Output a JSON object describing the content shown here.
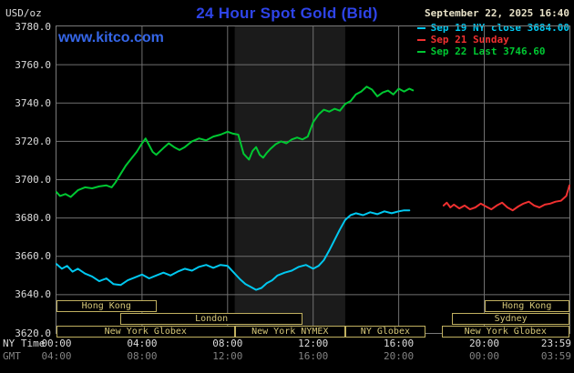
{
  "header": {
    "units": "USD/oz",
    "title": "24 Hour Spot Gold (Bid)",
    "datetime": "September 22, 2025 16:40",
    "watermark": "www.kitco.com"
  },
  "legend": {
    "items": [
      {
        "label": "Sep 19 NY close 3684.00",
        "color": "#00c8f0"
      },
      {
        "label": "Sep 21 Sunday",
        "color": "#f03030"
      },
      {
        "label": "Sep 22 Last 3746.60",
        "color": "#00c832"
      }
    ]
  },
  "colors": {
    "background": "#000000",
    "title": "#2e44e8",
    "watermark": "#3566e8",
    "grid": "#707070",
    "plot_border": "#7a7a7a",
    "axis_text": "#dcdcdc",
    "gmt_text": "#828282",
    "date_text": "#e8e2c8",
    "session_border": "#c0b060",
    "session_text": "#d4c678",
    "band": "#1b1b1b"
  },
  "chart_data": {
    "type": "line",
    "title": "24 Hour Spot Gold (Bid)",
    "ylabel": "USD/oz",
    "y_axis": {
      "min": 3620,
      "max": 3780,
      "tick_step": 20,
      "tick_labels": [
        "3780.0",
        "3760.0",
        "3740.0",
        "3720.0",
        "3700.0",
        "3680.0",
        "3660.0",
        "3640.0",
        "3620.0"
      ]
    },
    "x_axis": {
      "total_minutes": 1439,
      "tick_minutes": [
        0,
        240,
        480,
        720,
        960,
        1200,
        1439
      ],
      "rows": [
        {
          "label": "NY Time",
          "tick_labels": [
            "00:00",
            "04:00",
            "08:00",
            "12:00",
            "16:00",
            "20:00",
            "23:59"
          ]
        },
        {
          "label": "GMT",
          "tick_labels": [
            "04:00",
            "08:00",
            "12:00",
            "16:00",
            "20:00",
            "00:00",
            "03:59"
          ]
        }
      ]
    },
    "shaded_band": {
      "name": "nymex-session-band",
      "start_minute": 500,
      "end_minute": 810
    },
    "series": [
      {
        "name": "Sep 19 NY close",
        "color": "#00c8f0",
        "close_value": 3684.0,
        "points": [
          [
            0,
            3656
          ],
          [
            15,
            3653.5
          ],
          [
            30,
            3655
          ],
          [
            45,
            3652
          ],
          [
            60,
            3653.5
          ],
          [
            80,
            3651
          ],
          [
            100,
            3649.5
          ],
          [
            120,
            3647
          ],
          [
            140,
            3648.5
          ],
          [
            160,
            3645.5
          ],
          [
            180,
            3645
          ],
          [
            200,
            3647.5
          ],
          [
            220,
            3649
          ],
          [
            240,
            3650.5
          ],
          [
            260,
            3648.5
          ],
          [
            280,
            3650
          ],
          [
            300,
            3651.5
          ],
          [
            320,
            3650
          ],
          [
            340,
            3652
          ],
          [
            360,
            3653.5
          ],
          [
            380,
            3652.5
          ],
          [
            400,
            3654.5
          ],
          [
            420,
            3655.5
          ],
          [
            440,
            3654
          ],
          [
            460,
            3655.5
          ],
          [
            480,
            3655
          ],
          [
            500,
            3651
          ],
          [
            515,
            3648
          ],
          [
            530,
            3645.5
          ],
          [
            545,
            3644
          ],
          [
            560,
            3642.5
          ],
          [
            575,
            3643.5
          ],
          [
            590,
            3646
          ],
          [
            605,
            3647.5
          ],
          [
            620,
            3650
          ],
          [
            640,
            3651.5
          ],
          [
            660,
            3652.5
          ],
          [
            680,
            3654.5
          ],
          [
            700,
            3655.5
          ],
          [
            720,
            3653.5
          ],
          [
            735,
            3655
          ],
          [
            750,
            3658
          ],
          [
            765,
            3663
          ],
          [
            780,
            3668.5
          ],
          [
            795,
            3674
          ],
          [
            810,
            3679
          ],
          [
            825,
            3681.5
          ],
          [
            840,
            3682.5
          ],
          [
            860,
            3681.5
          ],
          [
            880,
            3683
          ],
          [
            900,
            3682
          ],
          [
            920,
            3683.5
          ],
          [
            940,
            3682.5
          ],
          [
            960,
            3683.5
          ],
          [
            975,
            3684
          ],
          [
            990,
            3684
          ]
        ]
      },
      {
        "name": "Sep 21 Sunday",
        "color": "#f03030",
        "points": [
          [
            1086,
            3686.5
          ],
          [
            1095,
            3688
          ],
          [
            1105,
            3685.5
          ],
          [
            1115,
            3687
          ],
          [
            1130,
            3685
          ],
          [
            1145,
            3686.5
          ],
          [
            1160,
            3684.5
          ],
          [
            1175,
            3685.5
          ],
          [
            1190,
            3687.5
          ],
          [
            1205,
            3686
          ],
          [
            1220,
            3684.5
          ],
          [
            1235,
            3686.5
          ],
          [
            1250,
            3688
          ],
          [
            1265,
            3685.5
          ],
          [
            1280,
            3684
          ],
          [
            1295,
            3686
          ],
          [
            1310,
            3687.5
          ],
          [
            1325,
            3688.5
          ],
          [
            1340,
            3686.5
          ],
          [
            1355,
            3685.5
          ],
          [
            1370,
            3687
          ],
          [
            1385,
            3687.5
          ],
          [
            1400,
            3688.5
          ],
          [
            1415,
            3689
          ],
          [
            1430,
            3691.5
          ],
          [
            1436,
            3695
          ],
          [
            1439,
            3697
          ]
        ]
      },
      {
        "name": "Sep 22",
        "color": "#00c832",
        "last_value": 3746.6,
        "points": [
          [
            0,
            3693.5
          ],
          [
            10,
            3691.5
          ],
          [
            25,
            3692.5
          ],
          [
            40,
            3691
          ],
          [
            60,
            3694.5
          ],
          [
            80,
            3696
          ],
          [
            100,
            3695.5
          ],
          [
            120,
            3696.5
          ],
          [
            140,
            3697
          ],
          [
            155,
            3696
          ],
          [
            165,
            3698.5
          ],
          [
            180,
            3703
          ],
          [
            195,
            3707.5
          ],
          [
            210,
            3711
          ],
          [
            225,
            3714.5
          ],
          [
            240,
            3719
          ],
          [
            250,
            3721.5
          ],
          [
            260,
            3718
          ],
          [
            270,
            3714.5
          ],
          [
            280,
            3713
          ],
          [
            300,
            3716.5
          ],
          [
            315,
            3719
          ],
          [
            330,
            3717
          ],
          [
            345,
            3715.5
          ],
          [
            360,
            3717
          ],
          [
            380,
            3720
          ],
          [
            400,
            3721.5
          ],
          [
            420,
            3720.5
          ],
          [
            440,
            3722.5
          ],
          [
            460,
            3723.5
          ],
          [
            480,
            3725
          ],
          [
            495,
            3724
          ],
          [
            510,
            3723.5
          ],
          [
            525,
            3713.5
          ],
          [
            540,
            3710.5
          ],
          [
            550,
            3715
          ],
          [
            560,
            3717
          ],
          [
            570,
            3713
          ],
          [
            580,
            3711.5
          ],
          [
            590,
            3714
          ],
          [
            600,
            3716
          ],
          [
            615,
            3718.5
          ],
          [
            630,
            3720
          ],
          [
            645,
            3719
          ],
          [
            660,
            3721
          ],
          [
            675,
            3722
          ],
          [
            690,
            3721
          ],
          [
            705,
            3722.5
          ],
          [
            720,
            3730
          ],
          [
            735,
            3734
          ],
          [
            750,
            3736.5
          ],
          [
            765,
            3735.5
          ],
          [
            780,
            3737
          ],
          [
            795,
            3736
          ],
          [
            810,
            3739.5
          ],
          [
            825,
            3741
          ],
          [
            840,
            3744.5
          ],
          [
            855,
            3746
          ],
          [
            870,
            3748.5
          ],
          [
            885,
            3747
          ],
          [
            900,
            3743.5
          ],
          [
            915,
            3745.5
          ],
          [
            930,
            3746.5
          ],
          [
            945,
            3744.5
          ],
          [
            960,
            3747.5
          ],
          [
            975,
            3746
          ],
          [
            990,
            3747.5
          ],
          [
            1000,
            3746.6
          ]
        ]
      }
    ],
    "sessions": [
      {
        "row": 0,
        "start_minute": 0,
        "end_minute": 280,
        "label": "Hong Kong"
      },
      {
        "row": 0,
        "start_minute": 1200,
        "end_minute": 1439,
        "label": "Hong Kong"
      },
      {
        "row": 1,
        "start_minute": 180,
        "end_minute": 690,
        "label": "London"
      },
      {
        "row": 1,
        "start_minute": 1110,
        "end_minute": 1439,
        "label": "Sydney"
      },
      {
        "row": 2,
        "start_minute": 0,
        "end_minute": 500,
        "label": "New York Globex"
      },
      {
        "row": 2,
        "start_minute": 500,
        "end_minute": 810,
        "label": "New York NYMEX"
      },
      {
        "row": 2,
        "start_minute": 810,
        "end_minute": 1035,
        "label": "NY Globex"
      },
      {
        "row": 2,
        "start_minute": 1080,
        "end_minute": 1439,
        "label": "New York Globex"
      }
    ]
  }
}
